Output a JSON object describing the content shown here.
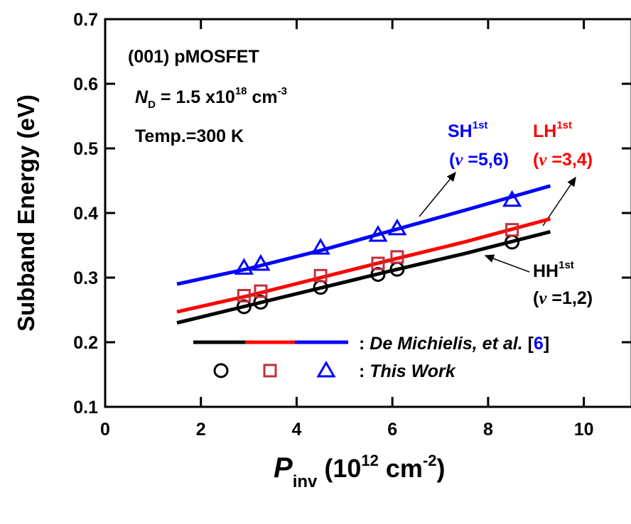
{
  "chart_data": {
    "type": "line",
    "xlim": [
      0,
      11
    ],
    "xticks": [
      0,
      2,
      4,
      6,
      8,
      10
    ],
    "ylim": [
      0.1,
      0.7
    ],
    "yticks": [
      0.1,
      0.2,
      0.3,
      0.4,
      0.5,
      0.6,
      0.7
    ],
    "y_label": "Subband Energy (eV)",
    "x_label": [
      "P",
      "inv",
      " (10",
      "12",
      " cm",
      "-2",
      ")"
    ],
    "line_x": [
      1.5,
      3,
      4.5,
      6,
      7.5,
      9.3
    ],
    "lines": [
      {
        "color": "#000000",
        "values": [
          0.23,
          0.257,
          0.284,
          0.311,
          0.337,
          0.371
        ]
      },
      {
        "color": "#ff0000",
        "values": [
          0.247,
          0.272,
          0.3,
          0.328,
          0.355,
          0.391
        ]
      },
      {
        "color": "#0000ff",
        "values": [
          0.29,
          0.314,
          0.342,
          0.373,
          0.404,
          0.442
        ]
      }
    ],
    "marker_x": [
      2.9,
      3.25,
      4.5,
      5.7,
      6.1,
      8.5
    ],
    "markers": [
      {
        "color": "#000000",
        "marker": "circle",
        "values": [
          0.255,
          0.262,
          0.285,
          0.305,
          0.313,
          0.355
        ]
      },
      {
        "color": "#c0303a",
        "marker": "square",
        "values": [
          0.272,
          0.279,
          0.303,
          0.322,
          0.332,
          0.374
        ]
      },
      {
        "color": "#0000ff",
        "marker": "triangle",
        "values": [
          0.315,
          0.321,
          0.346,
          0.366,
          0.376,
          0.42
        ]
      }
    ],
    "legend": [
      [
        ": ",
        "De Michielis, et al.",
        " [",
        "6",
        "]"
      ],
      [
        ": ",
        "This Work"
      ]
    ],
    "annotations": {
      "device": "(001) pMOSFET",
      "doping": [
        "N",
        "D",
        " = 1.5 x10",
        "18",
        " cm",
        "-3"
      ],
      "temp": "Temp.=300 K",
      "sh": [
        "SH",
        "1st",
        "(",
        "ν",
        " =5,6)"
      ],
      "lh": [
        "LH",
        "1st",
        "(",
        "ν",
        " =3,4)"
      ],
      "hh": [
        "HH",
        "1st",
        "(",
        "ν",
        " =1,2)"
      ]
    }
  }
}
